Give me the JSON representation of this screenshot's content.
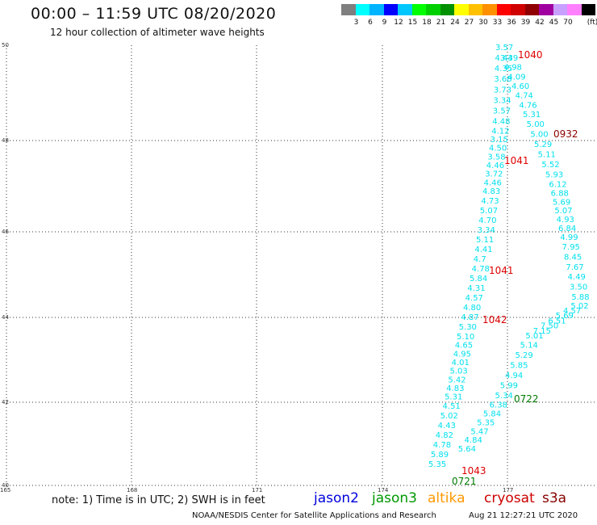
{
  "title": "00:00 – 11:59 UTC 08/20/2020",
  "subtitle": "12 hour collection of altimeter wave heights",
  "legend": {
    "unit": "(ft)",
    "colors": [
      "#7f7f7f",
      "#00ffff",
      "#00b4ff",
      "#0000ff",
      "#00c8ff",
      "#00ff00",
      "#00d000",
      "#009000",
      "#ffff00",
      "#ffc000",
      "#ff9000",
      "#ff0000",
      "#d00000",
      "#900000",
      "#a000a0",
      "#c8a0ff",
      "#ff80ff",
      "#000000"
    ],
    "labels": [
      "3",
      "6",
      "9",
      "12",
      "15",
      "18",
      "21",
      "24",
      "27",
      "30",
      "33",
      "36",
      "39",
      "42",
      "45",
      "70"
    ]
  },
  "axes": {
    "x_ticks": [
      "165",
      "168",
      "171",
      "174",
      "177"
    ],
    "y_ticks": [
      "50",
      "48",
      "46",
      "44",
      "42",
      "40"
    ]
  },
  "map_data": {
    "track_color": "#00e0ee",
    "time_color": "#dd0000",
    "track_a": [
      "3.57",
      "3.39",
      "4.44",
      "4.98",
      "4.35",
      "4.09",
      "3.68",
      "4.60",
      "3.73",
      "4.74",
      "3.34",
      "4.76",
      "3.57",
      "5.31",
      "4.48",
      "5.00",
      "4.12",
      "5.00",
      "3.15",
      "5.29",
      "4.50",
      "5.11",
      "3.58",
      "5.52",
      "4.46",
      "5.93",
      "3.72",
      "6.12",
      "4.46",
      "6.88",
      "4.83",
      "5.69",
      "4.73",
      "5.07",
      "5.07",
      "4.93",
      "4.70",
      "6.84",
      "3.34",
      "4.99",
      "5.11",
      "7.95",
      "4.41",
      "8.45",
      "4.7",
      "7.67",
      "4.78",
      "4.49",
      "5.84",
      "3.50",
      "4.31",
      "5.88",
      "4.57",
      "5.02",
      "4.80",
      "4.57",
      "4.87",
      "5.69",
      "5.30",
      "6.51",
      "5.10",
      "7.50",
      "4.65",
      "7.15",
      "4.95",
      "5.01",
      "4.01",
      "5.14",
      "5.03",
      "5.29",
      "5.42",
      "5.85",
      "4.83",
      "4.94",
      "5.31",
      "5.99",
      "4.51",
      "5.34",
      "5.02",
      "6.38",
      "4.43",
      "5.84",
      "4.82",
      "5.35",
      "4.78",
      "5.47",
      "5.89",
      "4.84",
      "5.35",
      "5.64"
    ],
    "times": [
      {
        "label": "1040",
        "color": "#dd0000"
      },
      {
        "label": "0932",
        "color": "#8b0000"
      },
      {
        "label": "1041",
        "color": "#dd0000"
      },
      {
        "label": "1041",
        "color": "#dd0000"
      },
      {
        "label": "1042",
        "color": "#dd0000"
      },
      {
        "label": "0722",
        "color": "#007a00"
      },
      {
        "label": "1043",
        "color": "#dd0000"
      },
      {
        "label": "0721",
        "color": "#007a00"
      }
    ]
  },
  "note": "note: 1) Time is in UTC; 2) SWH is in feet",
  "satellites": [
    {
      "name": "jason2",
      "color": "#0000dd"
    },
    {
      "name": "jason3",
      "color": "#009900"
    },
    {
      "name": "altika",
      "color": "#ff9900"
    },
    {
      "name": "cryosat",
      "color": "#cc0000"
    },
    {
      "name": "s3a",
      "color": "#880000"
    }
  ],
  "credit": "NOAA/NESDIS Center for Satellite Applications and Research",
  "timestamp": "Aug 21 12:27:21 UTC 2020"
}
